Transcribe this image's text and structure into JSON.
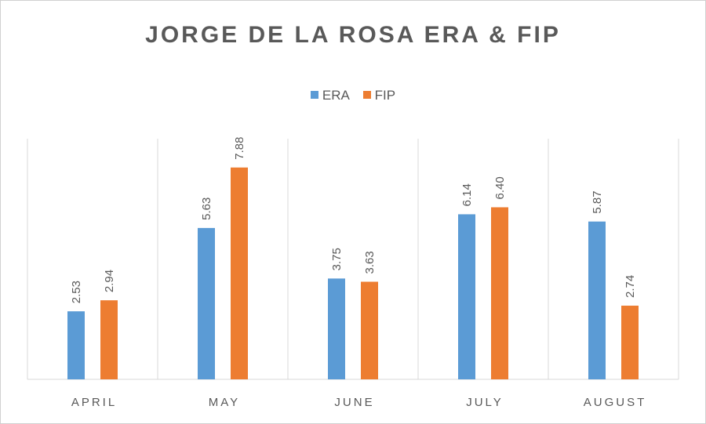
{
  "chart_data": {
    "type": "bar",
    "title": "JORGE DE LA ROSA ERA & FIP",
    "categories": [
      "APRIL",
      "MAY",
      "JUNE",
      "JULY",
      "AUGUST"
    ],
    "series": [
      {
        "name": "ERA",
        "color": "#5b9bd5",
        "values": [
          2.53,
          5.63,
          3.75,
          6.14,
          5.87
        ],
        "labels": [
          "2.53",
          "5.63",
          "3.75",
          "6.14",
          "5.87"
        ]
      },
      {
        "name": "FIP",
        "color": "#ed7d31",
        "values": [
          2.94,
          7.88,
          3.63,
          6.4,
          2.74
        ],
        "labels": [
          "2.94",
          "7.88",
          "3.63",
          "6.40",
          "2.74"
        ]
      }
    ],
    "xlabel": "",
    "ylabel": "",
    "ylim": [
      0,
      8.3
    ],
    "legend": "top-center",
    "grid": "vertical category separators"
  }
}
